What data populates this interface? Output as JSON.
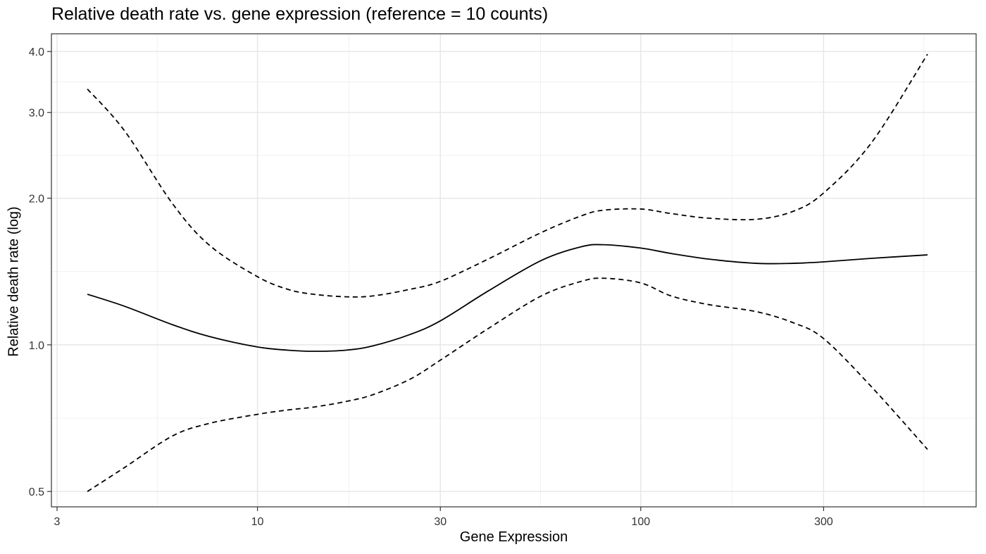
{
  "chart_data": {
    "type": "line",
    "title": "Relative death rate vs. gene expression (reference = 10 counts)",
    "xlabel": "Gene Expression",
    "ylabel": "Relative death rate (log)",
    "x_scale": "log",
    "y_scale": "log",
    "xlim": [
      2.9,
      750
    ],
    "ylim": [
      0.465,
      4.35
    ],
    "xticks": [
      {
        "value": 3,
        "label": "3"
      },
      {
        "value": 10,
        "label": "10"
      },
      {
        "value": 30,
        "label": "30"
      },
      {
        "value": 100,
        "label": "100"
      },
      {
        "value": 300,
        "label": "300"
      }
    ],
    "x_minor_gridlines": [
      5.477,
      17.32,
      54.77,
      173.2,
      547.7
    ],
    "yticks": [
      {
        "value": 0.5,
        "label": "0.5"
      },
      {
        "value": 1.0,
        "label": "1.0"
      },
      {
        "value": 2.0,
        "label": "2.0"
      },
      {
        "value": 3.0,
        "label": "3.0"
      },
      {
        "value": 4.0,
        "label": "4.0"
      }
    ],
    "y_minor_gridlines": [
      0.7071,
      1.4142,
      2.4495,
      3.4641
    ],
    "grid": true,
    "x": [
      3.6,
      4.5,
      6.0,
      7.5,
      10,
      12,
      14,
      17,
      20,
      25,
      30,
      40,
      55,
      70,
      80,
      100,
      120,
      150,
      200,
      250,
      300,
      400,
      560
    ],
    "series": [
      {
        "values": [
          1.27,
          1.2,
          1.1,
          1.04,
          0.99,
          0.975,
          0.97,
          0.975,
          0.995,
          1.05,
          1.12,
          1.29,
          1.49,
          1.59,
          1.605,
          1.58,
          1.54,
          1.5,
          1.47,
          1.47,
          1.48,
          1.505,
          1.53
        ],
        "style": "solid"
      },
      {
        "values": [
          3.35,
          2.75,
          1.95,
          1.6,
          1.38,
          1.3,
          1.27,
          1.255,
          1.26,
          1.3,
          1.35,
          1.5,
          1.7,
          1.84,
          1.89,
          1.9,
          1.86,
          1.82,
          1.81,
          1.88,
          2.05,
          2.6,
          3.95
        ],
        "style": "dashed"
      },
      {
        "values": [
          0.5,
          0.56,
          0.65,
          0.69,
          0.72,
          0.735,
          0.745,
          0.765,
          0.79,
          0.85,
          0.93,
          1.08,
          1.26,
          1.35,
          1.37,
          1.34,
          1.26,
          1.21,
          1.17,
          1.11,
          1.03,
          0.82,
          0.61
        ],
        "style": "dashed"
      }
    ]
  }
}
